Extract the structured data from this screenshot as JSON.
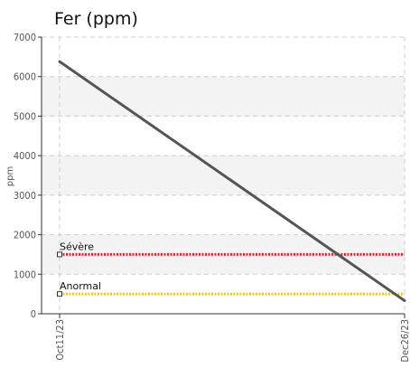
{
  "chart_data": {
    "type": "line",
    "title": "Fer (ppm)",
    "ylabel": "ppm",
    "xlabel": "",
    "ylim": [
      0,
      7000
    ],
    "yticks": [
      "0",
      "1000",
      "2000",
      "3000",
      "4000",
      "5000",
      "6000",
      "7000"
    ],
    "ytick_values": [
      0,
      1000,
      2000,
      3000,
      4000,
      5000,
      6000,
      7000
    ],
    "x": [
      "Oct11/23",
      "Dec26/23"
    ],
    "series": [
      {
        "values": [
          6380,
          330
        ],
        "color": "#555555"
      }
    ],
    "thresholds": [
      {
        "label": "Sévère",
        "value": 1500,
        "color": "#e8212a"
      },
      {
        "label": "Anormal",
        "value": 500,
        "color": "#f2c81e"
      }
    ],
    "grid": true,
    "banded_background": true
  }
}
